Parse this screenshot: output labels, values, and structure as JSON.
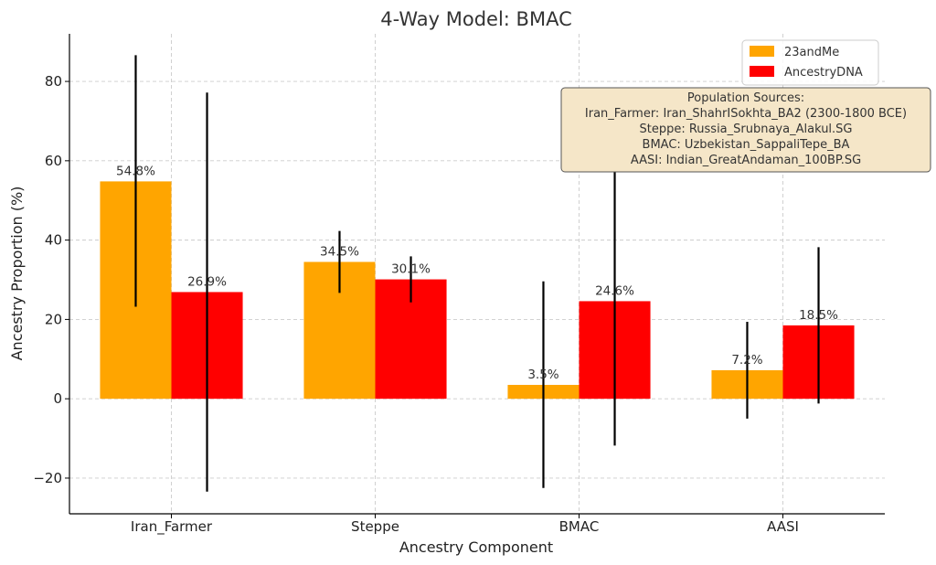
{
  "chart_data": {
    "type": "bar",
    "title": "4-Way Model: BMAC",
    "xlabel": "Ancestry Component",
    "ylabel": "Ancestry Proportion (%)",
    "categories": [
      "Iran_Farmer",
      "Steppe",
      "BMAC",
      "AASI"
    ],
    "ylim": [
      -29,
      92
    ],
    "yticks": [
      -20,
      0,
      20,
      40,
      60,
      80
    ],
    "ytick_labels": [
      "−20",
      "0",
      "20",
      "40",
      "60",
      "80"
    ],
    "grid": true,
    "legend_position": "top-right",
    "series": [
      {
        "name": "23andMe",
        "color": "#FFA500",
        "values": [
          54.8,
          34.5,
          3.5,
          7.2
        ],
        "labels": [
          "54.8%",
          "34.5%",
          "3.5%",
          "7.2%"
        ],
        "error_low": [
          23.2,
          26.7,
          -22.5,
          -5.0
        ],
        "error_high": [
          86.6,
          42.3,
          29.6,
          19.4
        ]
      },
      {
        "name": "AncestryDNA",
        "color": "#FF0000",
        "values": [
          26.9,
          30.1,
          24.6,
          18.5
        ],
        "labels": [
          "26.9%",
          "30.1%",
          "24.6%",
          "18.5%"
        ],
        "error_low": [
          -23.4,
          24.3,
          -11.8,
          -1.2
        ],
        "error_high": [
          77.2,
          35.9,
          61.0,
          38.2
        ]
      }
    ],
    "annotation": {
      "lines": [
        "Population Sources:",
        "Iran_Farmer: Iran_ShahrISokhta_BA2 (2300-1800 BCE)",
        "Steppe: Russia_Srubnaya_Alakul.SG",
        "BMAC: Uzbekistan_SappaliTepe_BA",
        "AASI: Indian_GreatAndaman_100BP.SG"
      ],
      "background": "#F5E6C8"
    }
  }
}
